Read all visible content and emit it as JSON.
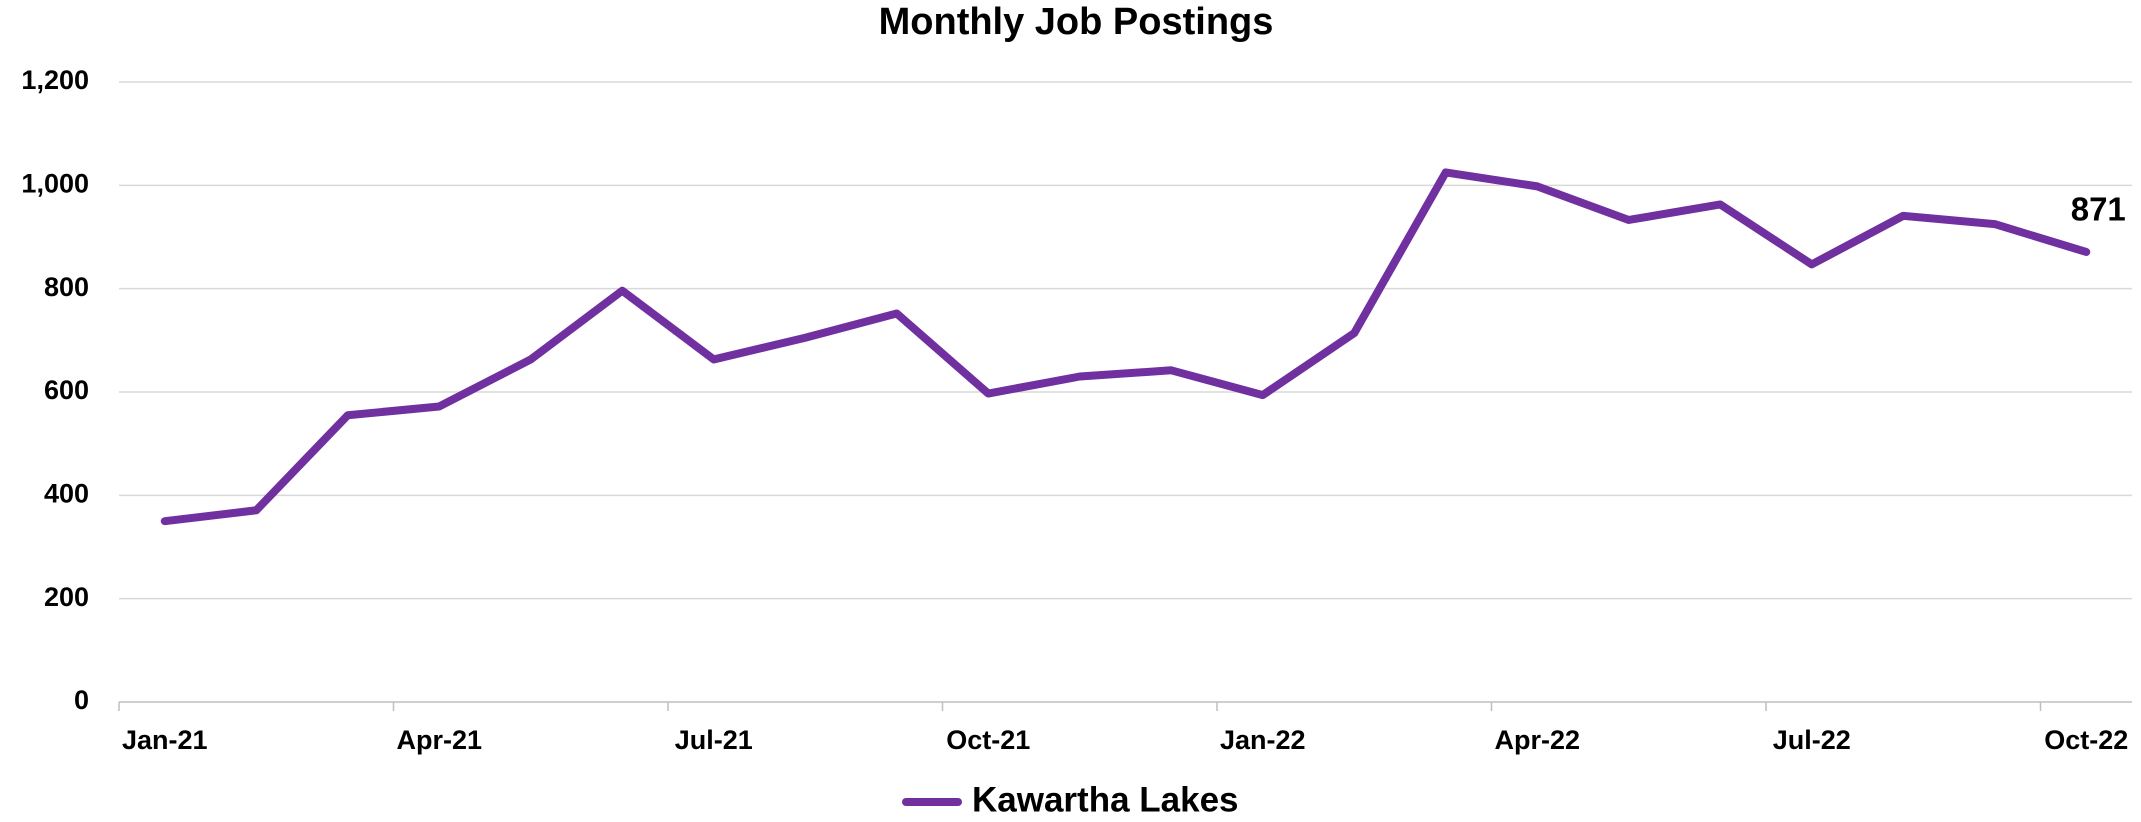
{
  "chart_data": {
    "type": "line",
    "title": "Monthly Job Postings",
    "categories": [
      "Jan-21",
      null,
      null,
      "Apr-21",
      null,
      null,
      "Jul-21",
      null,
      null,
      "Oct-21",
      null,
      null,
      "Jan-22",
      null,
      null,
      "Apr-22",
      null,
      null,
      "Jul-22",
      null,
      null,
      "Oct-22"
    ],
    "series": [
      {
        "name": "Kawartha Lakes",
        "color": "#7030a0",
        "values": [
          350,
          371,
          555,
          572,
          663,
          796,
          663,
          705,
          752,
          597,
          630,
          642,
          594,
          714,
          1025,
          998,
          933,
          963,
          847,
          941,
          925,
          871
        ]
      }
    ],
    "data_labels": "last",
    "ylim": [
      0,
      1200
    ],
    "yticks": [
      0,
      200,
      400,
      600,
      800,
      {
        "value": 1000,
        "label": "1,000"
      },
      {
        "value": 1200,
        "label": "1,200"
      }
    ],
    "grid": true,
    "legend": "bottom"
  }
}
